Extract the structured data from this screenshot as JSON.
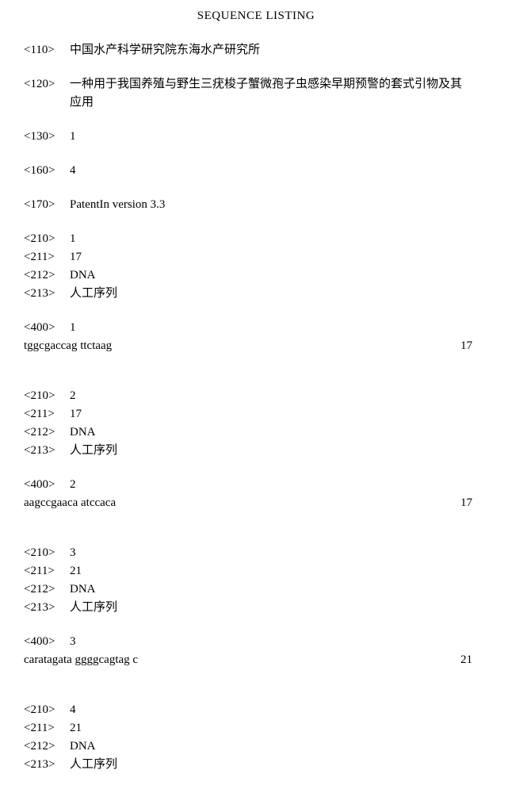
{
  "title": "SEQUENCE LISTING",
  "header": {
    "t110": {
      "tag": "<110>",
      "value": "中国水产科学研究院东海水产研究所"
    },
    "t120": {
      "tag": "<120>",
      "value_line1": "一种用于我国养殖与野生三疣梭子蟹微孢子虫感染早期预警的套式引物及其",
      "value_line2": "应用"
    },
    "t130": {
      "tag": "<130>",
      "value": "1"
    },
    "t160": {
      "tag": "<160>",
      "value": "4"
    },
    "t170": {
      "tag": "<170>",
      "value": "PatentIn version 3.3"
    }
  },
  "seqs": [
    {
      "t210": {
        "tag": "<210>",
        "value": "1"
      },
      "t211": {
        "tag": "<211>",
        "value": "17"
      },
      "t212": {
        "tag": "<212>",
        "value": "DNA"
      },
      "t213": {
        "tag": "<213>",
        "value": "人工序列"
      },
      "t400": {
        "tag": "<400>",
        "value": "1"
      },
      "sequence": "tggcgaccag ttctaag",
      "length": "17"
    },
    {
      "t210": {
        "tag": "<210>",
        "value": "2"
      },
      "t211": {
        "tag": "<211>",
        "value": "17"
      },
      "t212": {
        "tag": "<212>",
        "value": "DNA"
      },
      "t213": {
        "tag": "<213>",
        "value": "人工序列"
      },
      "t400": {
        "tag": "<400>",
        "value": "2"
      },
      "sequence": "aagccgaaca atccaca",
      "length": "17"
    },
    {
      "t210": {
        "tag": "<210>",
        "value": "3"
      },
      "t211": {
        "tag": "<211>",
        "value": "21"
      },
      "t212": {
        "tag": "<212>",
        "value": "DNA"
      },
      "t213": {
        "tag": "<213>",
        "value": "人工序列"
      },
      "t400": {
        "tag": "<400>",
        "value": "3"
      },
      "sequence": "caratagata ggggcagtag c",
      "length": "21"
    },
    {
      "t210": {
        "tag": "<210>",
        "value": "4"
      },
      "t211": {
        "tag": "<211>",
        "value": "21"
      },
      "t212": {
        "tag": "<212>",
        "value": "DNA"
      },
      "t213": {
        "tag": "<213>",
        "value": "人工序列"
      }
    }
  ]
}
